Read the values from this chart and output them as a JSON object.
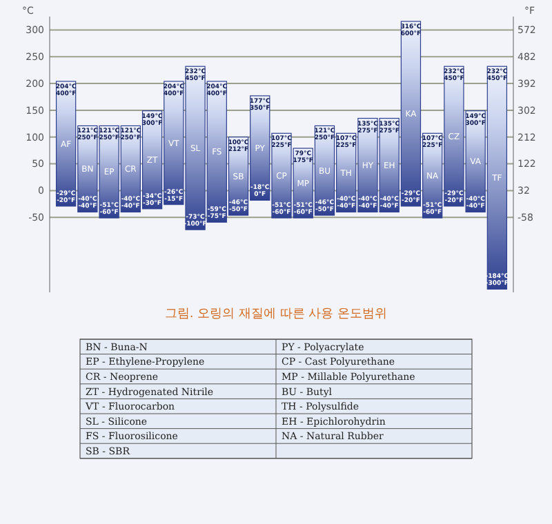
{
  "chart_data": {
    "type": "bar",
    "title": "그림. 오링의 재질에 따른 사용 온도범위",
    "ylabel": "°C",
    "y2label": "°F",
    "categories": [
      "AF",
      "BN",
      "EP",
      "CR",
      "ZT",
      "VT",
      "SL",
      "FS",
      "SB",
      "PY",
      "CP",
      "MP",
      "BU",
      "TH",
      "HY",
      "EH",
      "KA",
      "NA",
      "CZ",
      "VA",
      "TF"
    ],
    "values": [
      233,
      161,
      172,
      161,
      183,
      230,
      305,
      263,
      146,
      195,
      158,
      130,
      167,
      147,
      175,
      175,
      345,
      158,
      261,
      189,
      416
    ],
    "base": [
      -29,
      -40,
      -51,
      -40,
      -34,
      -26,
      -73,
      -59,
      -46,
      -18,
      -51,
      -51,
      -46,
      -40,
      -40,
      -40,
      -29,
      -51,
      -29,
      -40,
      -184
    ],
    "color": "#2e3f8f",
    "ylim": [
      -190,
      325
    ],
    "yticks": [
      -50,
      0,
      50,
      100,
      150,
      200,
      250,
      300
    ],
    "y2lim": [
      -310,
      617
    ],
    "y2ticks": [
      -58,
      32,
      122,
      212,
      302,
      392,
      482,
      572
    ],
    "grid": "y",
    "annotations": [
      {
        "text": "204°C\n400°F",
        "x": "AF",
        "y": 204
      },
      {
        "text": "-29°C\n-20°F",
        "x": "AF",
        "y": -29
      },
      {
        "text": "121°C\n250°F",
        "x": "BN",
        "y": 121
      },
      {
        "text": "-40°C\n-40°F",
        "x": "BN",
        "y": -40
      },
      {
        "text": "121°C\n250°F",
        "x": "EP",
        "y": 121
      },
      {
        "text": "-51°C\n-60°F",
        "x": "EP",
        "y": -51
      },
      {
        "text": "121°C\n250°F",
        "x": "CR",
        "y": 121
      },
      {
        "text": "-40°C\n-40°F",
        "x": "CR",
        "y": -40
      },
      {
        "text": "149°C\n300°F",
        "x": "ZT",
        "y": 149
      },
      {
        "text": "-34°C\n-30°F",
        "x": "ZT",
        "y": -34
      },
      {
        "text": "204°C\n400°F",
        "x": "VT",
        "y": 204
      },
      {
        "text": "-26°C\n-15°F",
        "x": "VT",
        "y": -26
      },
      {
        "text": "232°C\n450°F",
        "x": "SL",
        "y": 232
      },
      {
        "text": "-73°C\n-100°F",
        "x": "SL",
        "y": -73
      },
      {
        "text": "204°C\n400°F",
        "x": "FS",
        "y": 204
      },
      {
        "text": "-59°C\n-75°F",
        "x": "FS",
        "y": -59
      },
      {
        "text": "100°C\n212°F",
        "x": "SB",
        "y": 100
      },
      {
        "text": "-46°C\n-50°F",
        "x": "SB",
        "y": -46
      },
      {
        "text": "177°C\n350°F",
        "x": "PY",
        "y": 177
      },
      {
        "text": "-18°C\n0°F",
        "x": "PY",
        "y": -18
      },
      {
        "text": "107°C\n225°F",
        "x": "CP",
        "y": 107
      },
      {
        "text": "-51°C\n-60°F",
        "x": "CP",
        "y": -51
      },
      {
        "text": "79°C\n175°F",
        "x": "MP",
        "y": 79
      },
      {
        "text": "-51°C\n-60°F",
        "x": "MP",
        "y": -51
      },
      {
        "text": "121°C\n250°F",
        "x": "BU",
        "y": 121
      },
      {
        "text": "-46°C\n-50°F",
        "x": "BU",
        "y": -46
      },
      {
        "text": "107°C\n225°F",
        "x": "TH",
        "y": 107
      },
      {
        "text": "-40°C\n-40°F",
        "x": "TH",
        "y": -40
      },
      {
        "text": "135°C\n275°F",
        "x": "HY",
        "y": 135
      },
      {
        "text": "-40°C\n-40°F",
        "x": "HY",
        "y": -40
      },
      {
        "text": "135°C\n275°F",
        "x": "EH",
        "y": 135
      },
      {
        "text": "-40°C\n-40°F",
        "x": "EH",
        "y": -40
      },
      {
        "text": "316°C\n600°F",
        "x": "KA",
        "y": 316
      },
      {
        "text": "-29°C\n-20°F",
        "x": "KA",
        "y": -29
      },
      {
        "text": "107°C\n225°F",
        "x": "NA",
        "y": 107
      },
      {
        "text": "-51°C\n-60°F",
        "x": "NA",
        "y": -51
      },
      {
        "text": "232°C\n450°F",
        "x": "CZ",
        "y": 232
      },
      {
        "text": "-29°C\n-20°F",
        "x": "CZ",
        "y": -29
      },
      {
        "text": "149°C\n300°F",
        "x": "VA",
        "y": 149
      },
      {
        "text": "-40°C\n-40°F",
        "x": "VA",
        "y": -40
      },
      {
        "text": "232°C\n450°F",
        "x": "TF",
        "y": 232
      },
      {
        "text": "-184°C\n-300°F",
        "x": "TF",
        "y": -184
      },
      "BN - Buna-N",
      "EP - Ethylene-Propylene",
      "CR - Neoprene",
      "ZT - Hydrogenated Nitrile",
      "VT - Fluorocarbon",
      "SL - Silicone",
      "FS - Fluorosilicone",
      "SB - SBR",
      "PY - Polyacrylate",
      "CP - Cast Polyurethane",
      "MP - Millable Polyurethane",
      "BU - Butyl",
      "TH - Polysulfide",
      "EH - Epichlorohydrin",
      "NA - Natural Rubber"
    ]
  }
}
